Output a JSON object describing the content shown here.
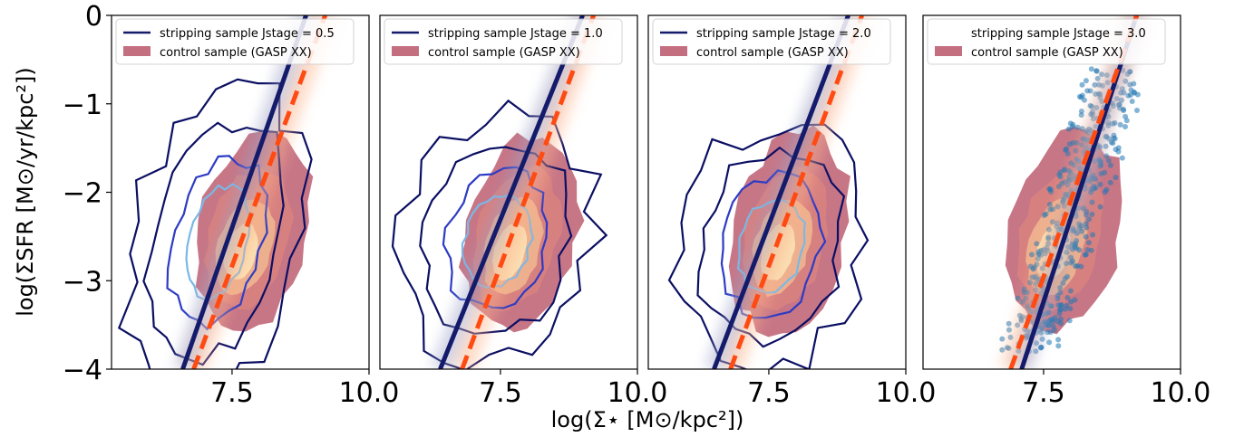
{
  "figure": {
    "xlabel": "log(Σ⋆ [M⊙/kpc²])",
    "ylabel": "log(ΣSFR [M⊙/yr/kpc²])"
  },
  "colors": {
    "stripping_line": "#141b6b",
    "fit_dashed": "#ff4a12",
    "control_fill": "#c46f80",
    "contour_dark": "#0b0f63",
    "contour_mid": "#2d3bc4",
    "contour_light": "#7ab8e6",
    "scatter": "#1f77b4"
  },
  "chart_data": [
    {
      "type": "scatter",
      "panel": 1,
      "xlim": [
        5.3,
        10.0
      ],
      "ylim": [
        -4,
        0
      ],
      "xticks": [
        "7.5",
        "10.0"
      ],
      "yticks": [
        "0",
        "−1",
        "−2",
        "−3",
        "−4"
      ],
      "legend_position": "top-left",
      "legend": [
        "stripping sample Jstage = 0.5",
        "control sample (GASP XX)"
      ],
      "stripping_fit": {
        "x": [
          6.6,
          8.85
        ],
        "y": [
          -4.0,
          0.0
        ]
      },
      "control_fit": {
        "x": [
          6.8,
          9.2
        ],
        "y": [
          -4.0,
          0.0
        ]
      }
    },
    {
      "type": "scatter",
      "panel": 2,
      "xlim": [
        5.3,
        10.0
      ],
      "ylim": [
        -4,
        0
      ],
      "xticks": [
        "7.5",
        "10.0"
      ],
      "legend_position": "top-left",
      "legend": [
        "stripping sample Jstage = 1.0",
        "control sample (GASP XX)"
      ],
      "stripping_fit": {
        "x": [
          6.4,
          9.0
        ],
        "y": [
          -4.0,
          0.0
        ]
      },
      "control_fit": {
        "x": [
          6.8,
          9.2
        ],
        "y": [
          -4.0,
          0.0
        ]
      }
    },
    {
      "type": "scatter",
      "panel": 3,
      "xlim": [
        5.3,
        10.0
      ],
      "ylim": [
        -4,
        0
      ],
      "xticks": [
        "7.5",
        "10.0"
      ],
      "legend_position": "top-left",
      "legend": [
        "stripping sample Jstage = 2.0",
        "control sample (GASP XX)"
      ],
      "stripping_fit": {
        "x": [
          6.5,
          8.95
        ],
        "y": [
          -4.0,
          0.0
        ]
      },
      "control_fit": {
        "x": [
          6.8,
          9.2
        ],
        "y": [
          -4.0,
          0.0
        ]
      }
    },
    {
      "type": "scatter",
      "panel": 4,
      "xlim": [
        5.3,
        10.0
      ],
      "ylim": [
        -4,
        0
      ],
      "xticks": [
        "7.5",
        "10.0"
      ],
      "legend_position": "top-left",
      "legend": [
        "stripping sample Jstage = 3.0",
        "control sample (GASP XX)"
      ],
      "stripping_fit": {
        "x": [
          7.1,
          9.2
        ],
        "y": [
          -4.0,
          0.0
        ]
      },
      "control_fit": {
        "x": [
          6.9,
          9.2
        ],
        "y": [
          -4.0,
          0.0
        ]
      }
    }
  ]
}
